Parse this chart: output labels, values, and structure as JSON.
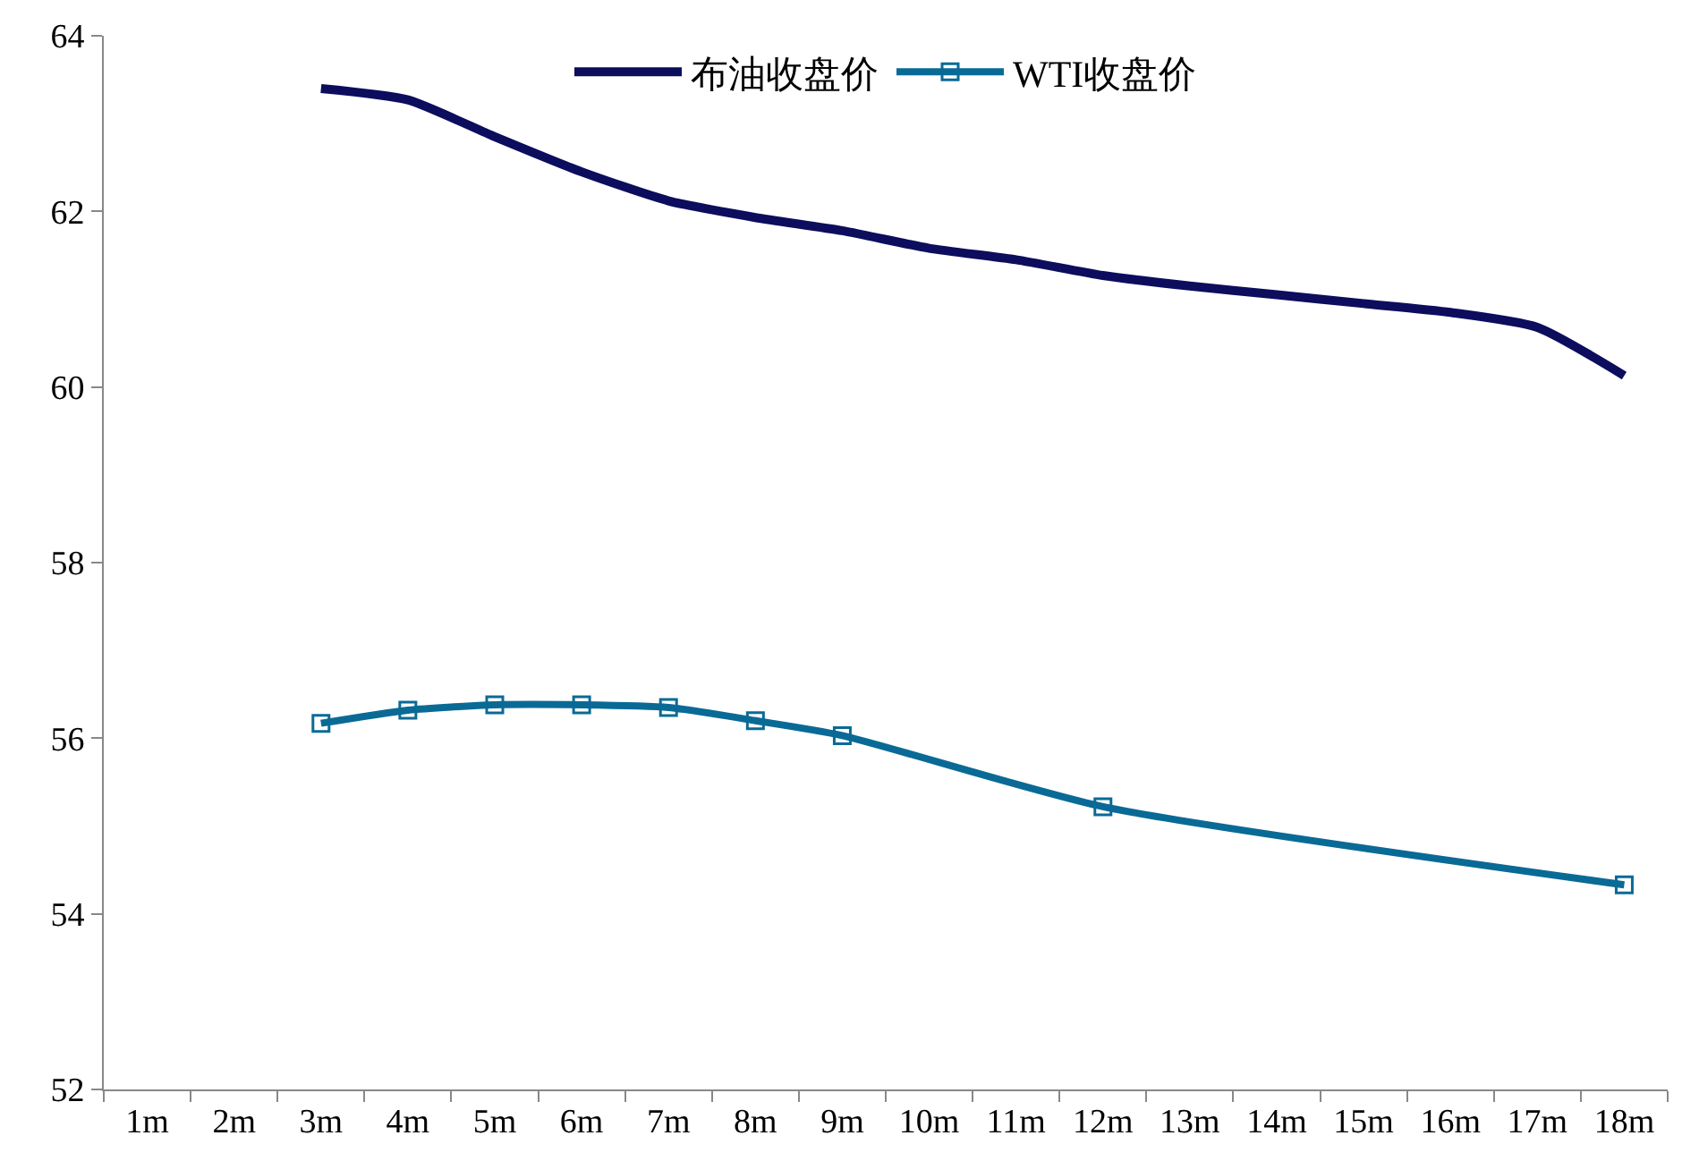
{
  "chart_data": {
    "type": "line",
    "categories": [
      "1m",
      "2m",
      "3m",
      "4m",
      "5m",
      "6m",
      "7m",
      "8m",
      "9m",
      "10m",
      "11m",
      "12m",
      "13m",
      "14m",
      "15m",
      "16m",
      "17m",
      "18m"
    ],
    "series": [
      {
        "name": "布油收盘价",
        "color": "#0d0d5e",
        "marker": "none",
        "values": [
          null,
          null,
          63.4,
          63.27,
          62.85,
          62.45,
          62.12,
          61.93,
          61.78,
          61.58,
          61.45,
          61.27,
          61.15,
          61.05,
          60.95,
          60.85,
          60.68,
          60.13
        ]
      },
      {
        "name": "WTI收盘价",
        "color": "#0a6a96",
        "marker": "square",
        "values": [
          null,
          null,
          56.17,
          56.32,
          56.38,
          56.38,
          56.35,
          56.2,
          56.03,
          null,
          null,
          55.22,
          null,
          null,
          null,
          null,
          null,
          54.33
        ]
      }
    ],
    "ylim": [
      52,
      64
    ],
    "yticks": [
      52,
      54,
      56,
      58,
      60,
      62,
      64
    ],
    "legend": "top"
  }
}
